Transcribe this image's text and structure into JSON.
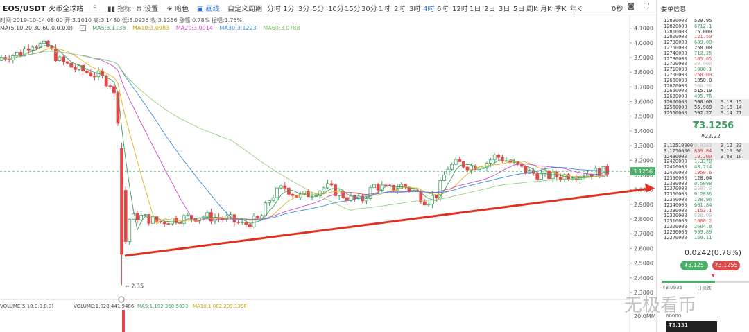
{
  "toolbar": {
    "symbol": "EOS/USDT",
    "exchange": "火币全球站",
    "indicator": "指标",
    "settings": "设置",
    "theme": "暗色",
    "drawline": "画线",
    "custom_period": "自定义周期",
    "periods": [
      "分时",
      "1分",
      "3分",
      "5分",
      "10分",
      "15分",
      "30分",
      "1时",
      "2时",
      "3时",
      "4时",
      "6时",
      "12时",
      "1日",
      "2日",
      "3日",
      "5日",
      "周K",
      "月K",
      "季K",
      "年K"
    ],
    "selected_period": "4时",
    "zero_label": "0秒"
  },
  "info_line": "时间:2019-10-14 08:00  开:3.1010  高:3.1480  低:3.0936  收:3.1256  涨幅:0.78%  振幅:1.76%",
  "ma_line": {
    "prefix": "MA(5,10,20,30,60,0,0,0,0)",
    "ma5": "MA5:3.1138",
    "ma10": "MA10:3.0983",
    "ma20": "MA20:3.0914",
    "ma30": "MA30:3.1223",
    "ma60": "MA60:3.0788"
  },
  "volume_line": {
    "prefix": "VOLUME(5,10,0,0,0,0)",
    "volume": "VOLUME:1,028,441.9486",
    "ma5": "MA5:1,192,358.5833",
    "ma10": "MA10:1,082,209.1358"
  },
  "axis": {
    "ticks": [
      "4.1000",
      "4.0000",
      "3.9000",
      "3.8000",
      "3.7000",
      "3.6000",
      "3.5000",
      "3.4000",
      "3.3000",
      "3.2000",
      "3.1000",
      "3.0000",
      "2.9000",
      "2.8000",
      "2.7000",
      "2.6000",
      "2.5000",
      "2.4000",
      "2.3000"
    ],
    "current_price_tag": "3.1256",
    "volume_tick": "20.0MM"
  },
  "low_marker": "← 2.35",
  "chart_data": {
    "type": "candlestick",
    "ylim": [
      2.3,
      4.15
    ],
    "last_close": 3.1256,
    "low_point": 2.35
  },
  "panel": {
    "title": "委单信息",
    "asks": [
      {
        "p": "1283",
        "pd": "0000",
        "q": "529.95",
        "c": "#333"
      },
      {
        "p": "1282",
        "pd": "0000",
        "q": "6712.1",
        "c": "#3a9e5f"
      },
      {
        "p": "1281",
        "pd": "0000",
        "q": "75.000",
        "c": "#333"
      },
      {
        "p": "1280",
        "pd": "0000",
        "q": "121.50",
        "c": "#e04848"
      },
      {
        "p": "1279",
        "pd": "0000",
        "q": "689.00",
        "c": "#3a9e5f"
      },
      {
        "p": "1275",
        "pd": "0000",
        "q": "250.00",
        "c": "#333"
      },
      {
        "p": "1274",
        "pd": "0000",
        "q": "712.25",
        "c": "#3a9e5f"
      },
      {
        "p": "1273",
        "pd": "0000",
        "q": "105.05",
        "c": "#e04848"
      },
      {
        "p": "1272",
        "pd": "0000",
        "q": "30.000",
        "c": "#bbb"
      },
      {
        "p": "1271",
        "pd": "0000",
        "q": "1000.1",
        "c": "#3a9e5f"
      },
      {
        "p": "1270",
        "pd": "0000",
        "q": "250.00",
        "c": "#e04848"
      },
      {
        "p": "1266",
        "pd": "0000",
        "q": "1050.0",
        "c": "#333"
      },
      {
        "p": "1267",
        "pd": "0000",
        "q": "500.36",
        "c": "#bbb"
      },
      {
        "p": "1265",
        "pd": "0000",
        "q": "515.19",
        "c": "#333"
      },
      {
        "p": "1263",
        "pd": "0000",
        "q": "495.76",
        "c": "#3a9e5f"
      },
      {
        "p": "1260",
        "pd": "0000",
        "q": "500.00",
        "c": "#333",
        "x1": "3.18",
        "x2": "15"
      },
      {
        "p": "1256",
        "pd": "0000",
        "q": "55.969",
        "c": "#333",
        "x1": "3.16",
        "x2": "14"
      },
      {
        "p": "1255",
        "pd": "0000",
        "q": "592.27",
        "c": "#333",
        "x1": "3.14",
        "x2": "71"
      }
    ],
    "last_price": "₮3.1256",
    "last_sub": "¥22.22",
    "bids": [
      {
        "p": "3.1251",
        "pd": "0000",
        "q": "0.0163",
        "c": "#bbb",
        "x1": "3.12",
        "x2": "33"
      },
      {
        "p": "3.1250",
        "pd": "000",
        "q": "899.84",
        "c": "#e04848",
        "x1": "3.10",
        "x2": "90"
      },
      {
        "p": "1243",
        "pd": "0000",
        "q": "19.200",
        "c": "#e04848",
        "x1": "3.08",
        "x2": "10"
      },
      {
        "p": "1242",
        "pd": "0000",
        "q": "1.3378",
        "c": "#3a9e5f"
      },
      {
        "p": "1241",
        "pd": "0000",
        "q": "48.714",
        "c": "#3a9e5f"
      },
      {
        "p": "1240",
        "pd": "0000",
        "q": "1950.6",
        "c": "#e04848"
      },
      {
        "p": "1239",
        "pd": "0000",
        "q": "128.04",
        "c": "#333"
      },
      {
        "p": "1238",
        "pd": "0000",
        "q": "0.5098",
        "c": "#3a9e5f"
      },
      {
        "p": "1237",
        "pd": "0000",
        "q": "3601.0",
        "c": "#bbb"
      },
      {
        "p": "1236",
        "pd": "0000",
        "q": "0.2036",
        "c": "#3a9e5f"
      },
      {
        "p": "1235",
        "pd": "0000",
        "q": "128.96",
        "c": "#3a9e5f"
      },
      {
        "p": "1234",
        "pd": "0000",
        "q": "601.84",
        "c": "#3a9e5f"
      },
      {
        "p": "1233",
        "pd": "0000",
        "q": "1153.1",
        "c": "#e04848"
      },
      {
        "p": "1232",
        "pd": "0000",
        "q": "638.00",
        "c": "#bbb"
      },
      {
        "p": "1231",
        "pd": "0000",
        "q": "1000.2",
        "c": "#e04848"
      },
      {
        "p": "1230",
        "pd": "0000",
        "q": "2604.8",
        "c": "#3a9e5f"
      },
      {
        "p": "1229",
        "pd": "0000",
        "q": "999.89",
        "c": "#3a9e5f"
      },
      {
        "p": "1227",
        "pd": "0000",
        "q": "160.11",
        "c": "#3a9e5f"
      }
    ],
    "change": "0.0242(0.78%)",
    "buy_label": "₮3.125",
    "sell_label": "₮3.1255",
    "day_progress": 0.6,
    "low_label": "₮3.0936",
    "range_label": "日涨跌",
    "depth_label": "60000",
    "tooltip": "₮3.131"
  },
  "watermark": "无极看币",
  "colors": {
    "up": "#3a9e5f",
    "down": "#e04848",
    "trend": "#e03020"
  }
}
